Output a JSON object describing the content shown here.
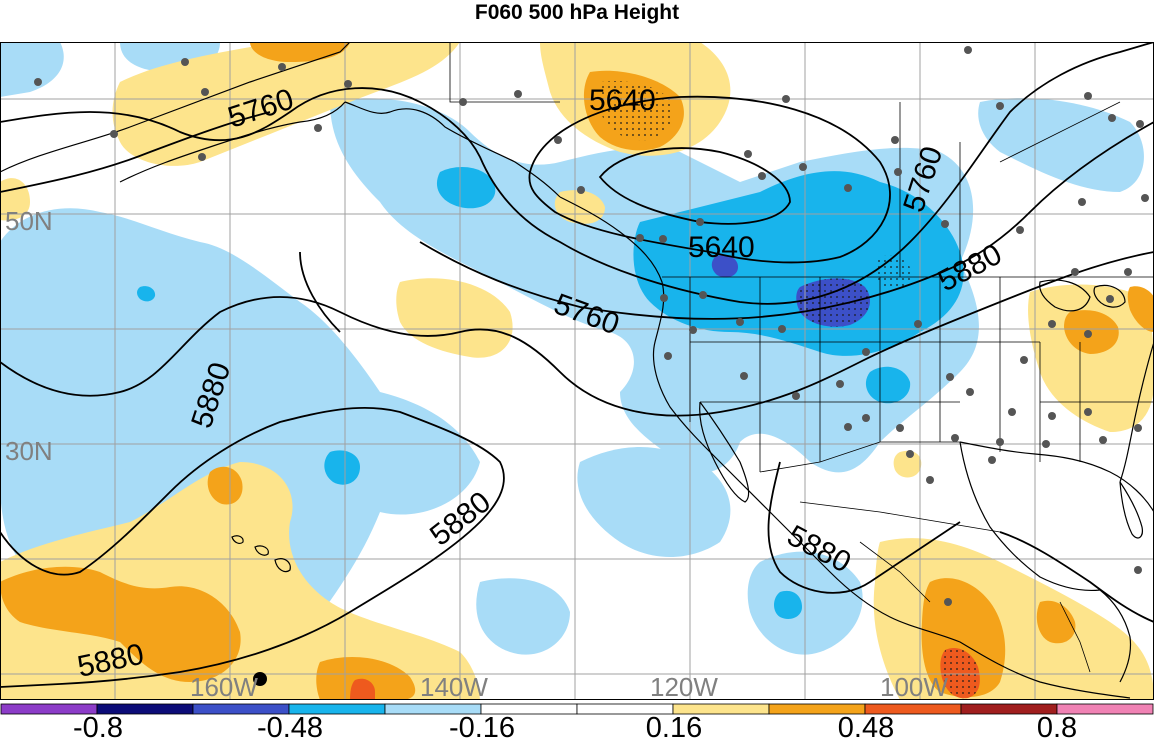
{
  "title": "F060 500 hPa Height",
  "map": {
    "lat_labels": [
      "50N",
      "30N"
    ],
    "lon_labels": [
      "160W",
      "140W",
      "120W",
      "100W"
    ],
    "contour_labels": [
      "5760",
      "5640",
      "5760",
      "5640",
      "5760",
      "5880",
      "5880",
      "5880",
      "5880",
      "5880"
    ],
    "colors": {
      "light_blue": "#a8dcf7",
      "medium_blue": "#18b4ec",
      "dark_blue": "#3c50c8",
      "light_yellow": "#fde48c",
      "orange": "#f4a31a",
      "red_orange": "#ee5a1e",
      "grid": "#a0a0a0",
      "coast": "#000000",
      "station": "#555555"
    }
  },
  "colorbar": {
    "colors": [
      "#8c3cc8",
      "#0c0c78",
      "#3c50c8",
      "#18b4ec",
      "#a8dcf7",
      "#ffffff",
      "#ffffff",
      "#fde48c",
      "#f4a31a",
      "#ee5a1e",
      "#a01e1e",
      "#f082b4"
    ],
    "labels": [
      "-0.8",
      "-0.48",
      "-0.16",
      "0.16",
      "0.48",
      "0.8"
    ]
  }
}
